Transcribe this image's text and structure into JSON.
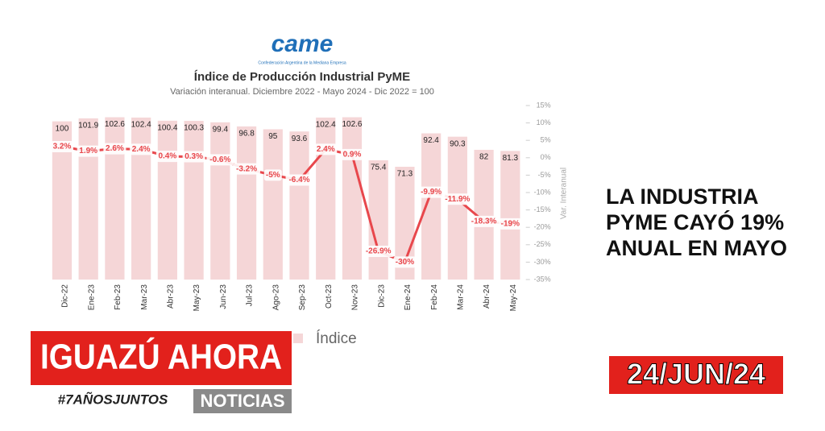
{
  "chart_data": {
    "type": "bar-line",
    "logo": "came",
    "logo_subtitle": "Confederación Argentina de la Mediana Empresa",
    "title": "Índice de Producción Industrial PyME",
    "subtitle": "Variación interanual. Diciembre 2022 - Mayo 2024 - Dic 2022 = 100",
    "y2_label": "Var. Interanual",
    "categories": [
      "Dic-22",
      "Ene-23",
      "Feb-23",
      "Mar-23",
      "Abr-23",
      "May-23",
      "Jun-23",
      "Jul-23",
      "Ago-23",
      "Sep-23",
      "Oct-23",
      "Nov-23",
      "Dic-23",
      "Ene-24",
      "Feb-24",
      "Mar-24",
      "Abr-24",
      "May-24"
    ],
    "ylim": [
      0,
      110
    ],
    "y2lim": [
      -35,
      15
    ],
    "y2ticks": [
      {
        "value": 15,
        "label": "15%"
      },
      {
        "value": 10,
        "label": "10%"
      },
      {
        "value": 5,
        "label": "5%"
      },
      {
        "value": 0,
        "label": "0%"
      },
      {
        "value": -5,
        "label": "-5%"
      },
      {
        "value": -10,
        "label": "-10%"
      },
      {
        "value": -15,
        "label": "-15%"
      },
      {
        "value": -20,
        "label": "-20%"
      },
      {
        "value": -25,
        "label": "-25%"
      },
      {
        "value": -30,
        "label": "-30%"
      },
      {
        "value": -35,
        "label": "-35%"
      }
    ],
    "series": [
      {
        "name": "Índice",
        "color": "#f5d6d7",
        "type": "bar",
        "values": [
          100,
          101.9,
          102.6,
          102.4,
          100.4,
          100.3,
          99.4,
          96.8,
          95,
          93.6,
          102.4,
          102.6,
          75.4,
          71.3,
          92.4,
          90.3,
          82,
          81.3
        ]
      },
      {
        "color": "#e8474c",
        "type": "line",
        "axis": "y2",
        "values": [
          3.2,
          1.9,
          2.6,
          2.4,
          0.4,
          0.3,
          -0.6,
          -3.2,
          -5,
          -6.4,
          2.4,
          0.9,
          -26.9,
          -30,
          -9.9,
          -11.9,
          -18.3,
          -19
        ],
        "value_labels": [
          "3.2%",
          "1.9%",
          "2.6%",
          "2.4%",
          "0.4%",
          "0.3%",
          "-0.6%",
          "-3.2%",
          "-5%",
          "-6.4%",
          "2.4%",
          "0.9%",
          "-26.9%",
          "-30%",
          "-9.9%",
          "-11.9%",
          "-18.3%",
          "-19%"
        ]
      }
    ]
  },
  "headline": [
    "LA INDUSTRIA",
    "PYME CAYÓ 19%",
    "ANUAL EN MAYO"
  ],
  "brand": {
    "name": "IGUAZÚ AHORA",
    "tag": "#7AÑOSJUNTOS",
    "section": "NOTICIAS"
  },
  "date": "24/JUN/24"
}
